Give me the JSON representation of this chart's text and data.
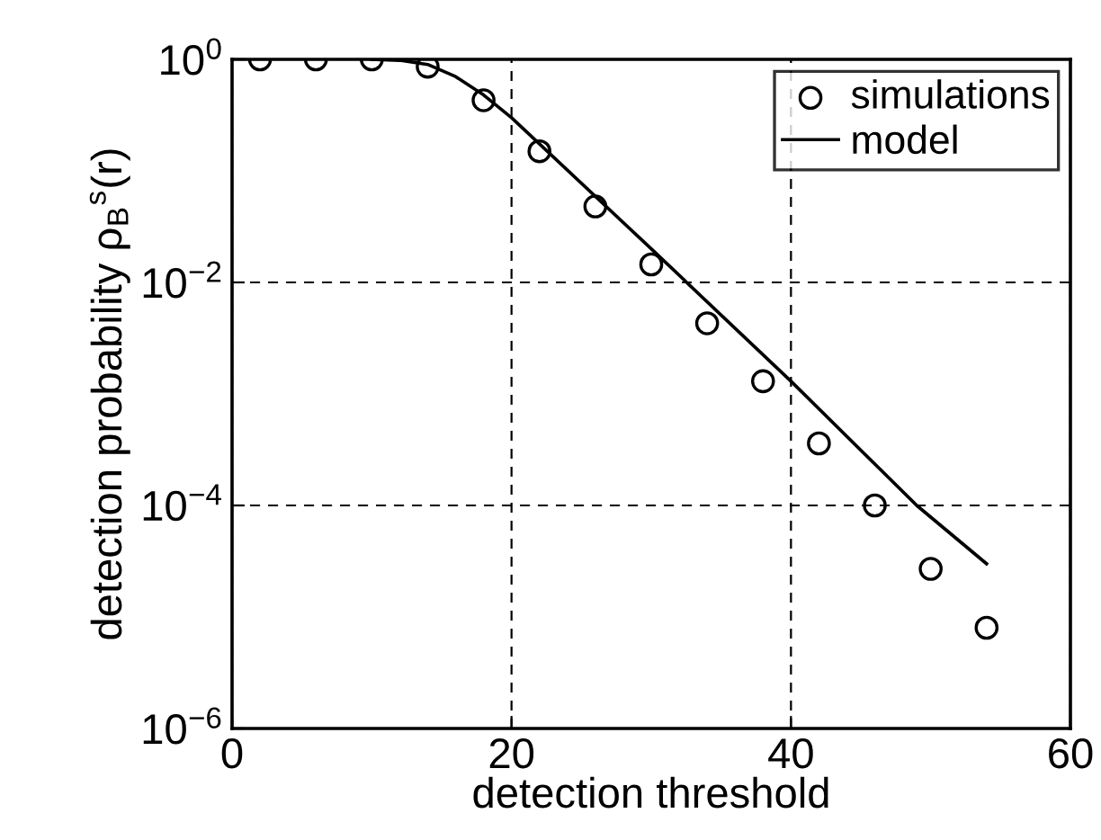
{
  "chart_data": {
    "type": "scatter",
    "xlabel": "detection threshold",
    "ylabel": "detection probability ρ$_{B}$$^{s}$(r)",
    "series": [
      {
        "name": "simulations",
        "color": "#000000",
        "marker": "circle",
        "x": [
          2,
          6,
          10,
          14,
          18,
          22,
          26,
          30,
          34,
          38,
          42,
          46,
          50,
          54
        ],
        "values": [
          1,
          1,
          1,
          0.86,
          0.43,
          0.15,
          0.048,
          0.0145,
          0.0043,
          0.0013,
          0.00036,
          0.0001,
          2.7e-05,
          8e-06
        ]
      },
      {
        "name": "model",
        "type": "line",
        "color": "#000000",
        "marker": "none",
        "line_style": "solid",
        "x": [
          10,
          12,
          14,
          16,
          18,
          20,
          30,
          40,
          49,
          54
        ],
        "values": [
          1,
          0.98,
          0.9,
          0.7,
          0.48,
          0.3,
          0.02,
          0.0013,
          0.0001,
          3e-05
        ]
      }
    ],
    "log": "y",
    "xlim": [
      0,
      60
    ],
    "xticks": [
      0,
      20,
      40,
      60
    ],
    "ylim": [
      1e-06,
      1
    ],
    "yticks": [
      {
        "value": 1,
        "label": "10$^{0}$"
      },
      {
        "value": 0.01,
        "label": "10$^{−2}$"
      },
      {
        "value": 0.0001,
        "label": "10$^{−4}$"
      },
      {
        "value": 1e-06,
        "label": "10$^{−6}$"
      }
    ],
    "grid": true,
    "legend": "top right"
  }
}
